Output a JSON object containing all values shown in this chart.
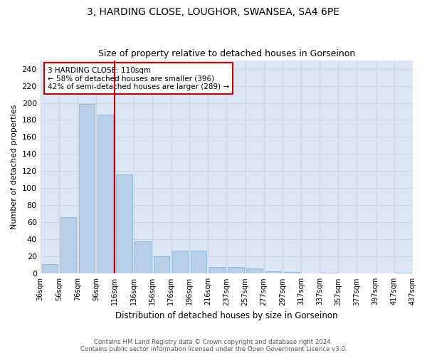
{
  "title": "3, HARDING CLOSE, LOUGHOR, SWANSEA, SA4 6PE",
  "subtitle": "Size of property relative to detached houses in Gorseinon",
  "xlabel": "Distribution of detached houses by size in Gorseinon",
  "ylabel": "Number of detached properties",
  "bar_values": [
    11,
    66,
    199,
    186,
    116,
    38,
    20,
    27,
    27,
    8,
    8,
    6,
    3,
    2,
    0,
    1,
    0,
    0,
    0,
    1
  ],
  "bar_labels": [
    "36sqm",
    "56sqm",
    "76sqm",
    "96sqm",
    "116sqm",
    "136sqm",
    "156sqm",
    "176sqm",
    "196sqm",
    "216sqm",
    "237sqm",
    "257sqm",
    "277sqm",
    "297sqm",
    "317sqm",
    "337sqm",
    "357sqm",
    "377sqm",
    "397sqm",
    "417sqm",
    "437sqm"
  ],
  "bar_color": "#b8cfe8",
  "bar_edge_color": "#7aafd4",
  "grid_color": "#c8d4e8",
  "background_color": "#dce6f5",
  "vline_color": "#cc0000",
  "annotation_text": "3 HARDING CLOSE: 110sqm\n← 58% of detached houses are smaller (396)\n42% of semi-detached houses are larger (289) →",
  "annotation_box_color": "#ffffff",
  "annotation_box_edge": "#cc0000",
  "ylim": [
    0,
    250
  ],
  "yticks": [
    0,
    20,
    40,
    60,
    80,
    100,
    120,
    140,
    160,
    180,
    200,
    220,
    240
  ],
  "footer_line1": "Contains HM Land Registry data © Crown copyright and database right 2024.",
  "footer_line2": "Contains public sector information licensed under the Open Government Licence v3.0."
}
